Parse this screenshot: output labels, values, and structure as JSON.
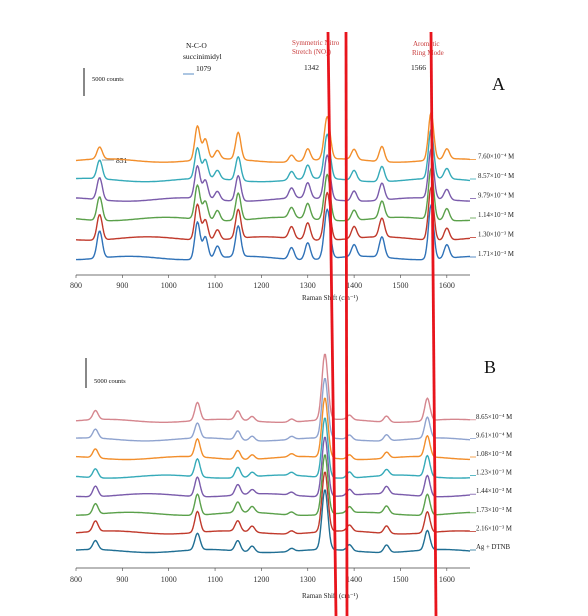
{
  "chart_data": [
    {
      "type": "line",
      "panel_label": "A",
      "xlabel": "Raman Shift (cm⁻¹)",
      "xlim": [
        800,
        1650
      ],
      "x_ticks": [
        "800",
        "900",
        "1000",
        "1100",
        "1200",
        "1300",
        "1400",
        "1500",
        "1600"
      ],
      "scale_bar_label": "5000 counts",
      "grid": false,
      "annotations": [
        {
          "text": "851",
          "x": 851
        },
        {
          "text": "N-C-O",
          "x": 1079
        },
        {
          "text": "succinimidyl",
          "x": 1079
        },
        {
          "text": "1079",
          "x": 1079
        },
        {
          "text": "Symmetric  Nitro",
          "x": 1342
        },
        {
          "text": "Stretch (NO₂)",
          "x": 1342
        },
        {
          "text": "1342",
          "x": 1342
        },
        {
          "text": "Aromatic",
          "x": 1566
        },
        {
          "text": "Ring Mode",
          "x": 1566
        },
        {
          "text": "1566",
          "x": 1566
        }
      ],
      "peaks": [
        851,
        1062,
        1079,
        1105,
        1150,
        1265,
        1300,
        1342,
        1400,
        1460,
        1566,
        1600
      ],
      "series": [
        {
          "name": "7.60×10⁻⁴ M",
          "color": "#f28e2b",
          "peak_heights": [
            0.35,
            1.0,
            0.6,
            0.25,
            0.8,
            0.2,
            0.35,
            1.25,
            0.3,
            0.45,
            1.4,
            0.3
          ]
        },
        {
          "name": "8.57×10⁻⁴ M",
          "color": "#35aab9",
          "peak_heights": [
            0.55,
            0.9,
            0.55,
            0.25,
            0.7,
            0.25,
            0.4,
            1.3,
            0.3,
            0.45,
            1.45,
            0.3
          ]
        },
        {
          "name": "9.79×10⁻⁴ M",
          "color": "#7a5bab",
          "peak_heights": [
            0.65,
            0.95,
            0.55,
            0.25,
            0.75,
            0.3,
            0.45,
            1.3,
            0.3,
            0.5,
            1.45,
            0.3
          ]
        },
        {
          "name": "1.14×10⁻³ M",
          "color": "#5aa04a",
          "peak_heights": [
            0.7,
            1.0,
            0.55,
            0.3,
            0.8,
            0.3,
            0.45,
            1.35,
            0.3,
            0.5,
            1.5,
            0.35
          ]
        },
        {
          "name": "1.30×10⁻³ M",
          "color": "#c0392b",
          "peak_heights": [
            0.75,
            1.05,
            0.6,
            0.3,
            0.85,
            0.35,
            0.5,
            1.4,
            0.35,
            0.55,
            1.55,
            0.35
          ]
        },
        {
          "name": "1.71×10⁻³ M",
          "color": "#2f72b8",
          "peak_heights": [
            0.8,
            1.1,
            0.65,
            0.35,
            0.9,
            0.35,
            0.5,
            1.45,
            0.35,
            0.6,
            1.6,
            0.4
          ]
        }
      ]
    },
    {
      "type": "line",
      "panel_label": "B",
      "xlabel": "Raman Shift (cm⁻¹)",
      "xlim": [
        800,
        1650
      ],
      "x_ticks": [
        "800",
        "900",
        "1000",
        "1100",
        "1200",
        "1300",
        "1400",
        "1500",
        "1600"
      ],
      "scale_bar_label": "5000 counts",
      "grid": false,
      "peaks": [
        842,
        1062,
        1149,
        1180,
        1265,
        1337,
        1390,
        1470,
        1558
      ],
      "series": [
        {
          "name": "8.65×10⁻⁴ M",
          "color": "#d5868e",
          "peak_heights": [
            0.3,
            0.6,
            0.3,
            0.15,
            0.1,
            2.2,
            0.15,
            0.2,
            0.75
          ]
        },
        {
          "name": "9.61×10⁻⁴ M",
          "color": "#8fa3cf",
          "peak_heights": [
            0.3,
            0.5,
            0.3,
            0.15,
            0.1,
            2.0,
            0.15,
            0.2,
            0.7
          ]
        },
        {
          "name": "1.08×10⁻³ M",
          "color": "#f28e2b",
          "peak_heights": [
            0.3,
            0.6,
            0.3,
            0.15,
            0.1,
            2.0,
            0.15,
            0.2,
            0.7
          ]
        },
        {
          "name": "1.23×10⁻³ M",
          "color": "#35aab9",
          "peak_heights": [
            0.3,
            0.6,
            0.35,
            0.15,
            0.1,
            2.0,
            0.2,
            0.2,
            0.7
          ]
        },
        {
          "name": "1.44×10⁻³ M",
          "color": "#7a5bab",
          "peak_heights": [
            0.35,
            0.65,
            0.35,
            0.15,
            0.1,
            2.0,
            0.2,
            0.25,
            0.7
          ]
        },
        {
          "name": "1.73×10⁻³ M",
          "color": "#5aa04a",
          "peak_heights": [
            0.35,
            0.7,
            0.35,
            0.2,
            0.1,
            2.0,
            0.2,
            0.25,
            0.7
          ]
        },
        {
          "name": "2.16×10⁻³ M",
          "color": "#c0392b",
          "peak_heights": [
            0.35,
            0.7,
            0.35,
            0.2,
            0.1,
            2.0,
            0.2,
            0.25,
            0.7
          ]
        },
        {
          "name": "Ag + DTNB",
          "color": "#1f6e93",
          "peak_heights": [
            0.3,
            0.55,
            0.35,
            0.2,
            0.1,
            2.0,
            0.2,
            0.25,
            0.65
          ]
        }
      ]
    }
  ],
  "overlay": {
    "line_color": "#e8141c"
  }
}
